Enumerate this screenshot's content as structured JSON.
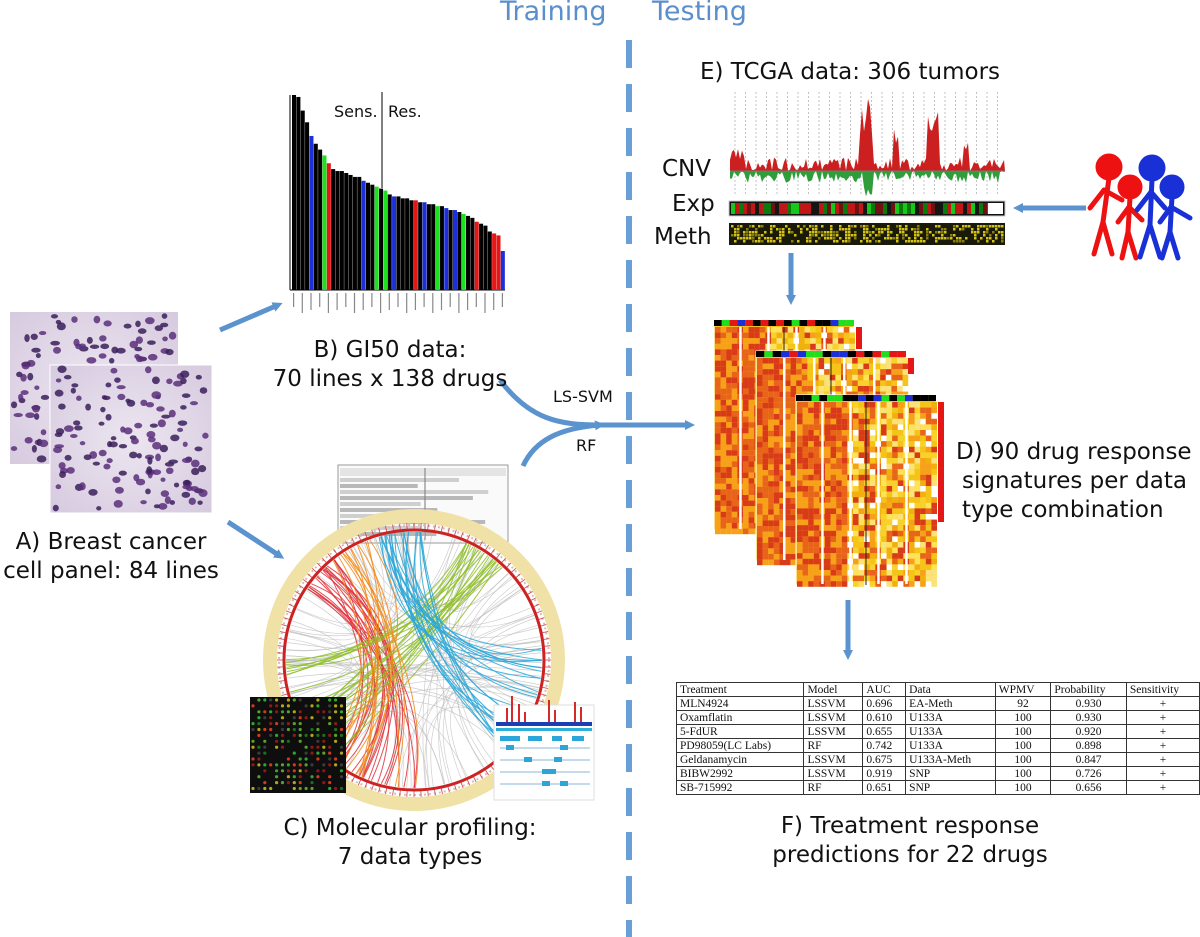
{
  "headings": {
    "training": "Training",
    "testing": "Testing"
  },
  "panels": {
    "a": {
      "line1": "A) Breast cancer",
      "line2": "cell panel: 84 lines"
    },
    "b": {
      "line1": "B) GI50 data:",
      "line2": "70 lines x 138 drugs",
      "sens": "Sens.",
      "res": "Res."
    },
    "c": {
      "line1": "C) Molecular profiling:",
      "line2": "7 data types"
    },
    "d": {
      "line1": "D) 90 drug response",
      "line2": "signatures per data",
      "line3": "type combination"
    },
    "e": {
      "title": "E) TCGA data: 306 tumors",
      "cnv": "CNV",
      "exp": "Exp",
      "meth": "Meth"
    },
    "f": {
      "line1": "F) Treatment response",
      "line2": "predictions for 22 drugs"
    }
  },
  "methods": {
    "lssvm": "LS-SVM",
    "rf": "RF"
  },
  "gi50_bars": [
    {
      "v": 100,
      "c": "black"
    },
    {
      "v": 99,
      "c": "black"
    },
    {
      "v": 92,
      "c": "black"
    },
    {
      "v": 86,
      "c": "black"
    },
    {
      "v": 79,
      "c": "blue"
    },
    {
      "v": 75,
      "c": "black"
    },
    {
      "v": 72,
      "c": "black"
    },
    {
      "v": 69,
      "c": "green"
    },
    {
      "v": 65,
      "c": "red"
    },
    {
      "v": 62,
      "c": "black"
    },
    {
      "v": 61,
      "c": "black"
    },
    {
      "v": 61,
      "c": "black"
    },
    {
      "v": 60,
      "c": "black"
    },
    {
      "v": 59,
      "c": "black"
    },
    {
      "v": 58,
      "c": "black"
    },
    {
      "v": 58,
      "c": "black"
    },
    {
      "v": 56,
      "c": "blue"
    },
    {
      "v": 55,
      "c": "black"
    },
    {
      "v": 54,
      "c": "black"
    },
    {
      "v": 53,
      "c": "green"
    },
    {
      "v": 52,
      "c": "black"
    },
    {
      "v": 51,
      "c": "green"
    },
    {
      "v": 49,
      "c": "black"
    },
    {
      "v": 48,
      "c": "blue"
    },
    {
      "v": 48,
      "c": "black"
    },
    {
      "v": 47,
      "c": "black"
    },
    {
      "v": 47,
      "c": "black"
    },
    {
      "v": 46,
      "c": "black"
    },
    {
      "v": 46,
      "c": "red"
    },
    {
      "v": 45,
      "c": "black"
    },
    {
      "v": 45,
      "c": "blue"
    },
    {
      "v": 44,
      "c": "black"
    },
    {
      "v": 44,
      "c": "black"
    },
    {
      "v": 43,
      "c": "green"
    },
    {
      "v": 43,
      "c": "black"
    },
    {
      "v": 42,
      "c": "blue"
    },
    {
      "v": 41,
      "c": "black"
    },
    {
      "v": 41,
      "c": "blue"
    },
    {
      "v": 40,
      "c": "black"
    },
    {
      "v": 39,
      "c": "green"
    },
    {
      "v": 38,
      "c": "black"
    },
    {
      "v": 37,
      "c": "black"
    },
    {
      "v": 35,
      "c": "red"
    },
    {
      "v": 34,
      "c": "black"
    },
    {
      "v": 33,
      "c": "black"
    },
    {
      "v": 30,
      "c": "black"
    },
    {
      "v": 29,
      "c": "red"
    },
    {
      "v": 28,
      "c": "red"
    },
    {
      "v": 20,
      "c": "blue"
    }
  ],
  "table": {
    "headers": [
      "Treatment",
      "Model",
      "AUC",
      "Data",
      "WPMV",
      "Probability",
      "Sensitivity"
    ],
    "rows": [
      [
        "MLN4924",
        "LSSVM",
        "0.696",
        "EA-Meth",
        "92",
        "0.930",
        "+"
      ],
      [
        "Oxamflatin",
        "LSSVM",
        "0.610",
        "U133A",
        "100",
        "0.930",
        "+"
      ],
      [
        "5-FdUR",
        "LSSVM",
        "0.655",
        "U133A",
        "100",
        "0.920",
        "+"
      ],
      [
        "PD98059(LC Labs)",
        "RF",
        "0.742",
        "U133A",
        "100",
        "0.898",
        "+"
      ],
      [
        "Geldanamycin",
        "LSSVM",
        "0.675",
        "U133A-Meth",
        "100",
        "0.847",
        "+"
      ],
      [
        "BIBW2992",
        "LSSVM",
        "0.919",
        "SNP",
        "100",
        "0.726",
        "+"
      ],
      [
        "SB-715992",
        "RF",
        "0.651",
        "SNP",
        "100",
        "0.656",
        "+"
      ]
    ]
  },
  "colors": {
    "arrow": "#5b93cf",
    "divider": "#6a9ed6",
    "heading": "#5a8fcc"
  }
}
